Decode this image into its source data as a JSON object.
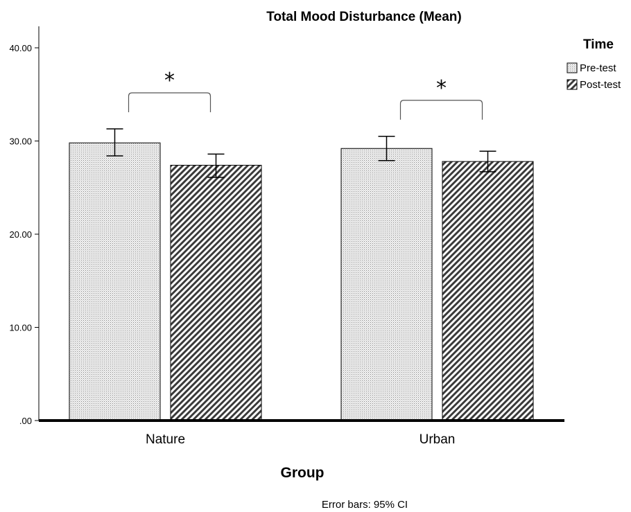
{
  "chart_data": {
    "type": "bar",
    "title": "Total Mood Disturbance (Mean)",
    "xlabel": "Group",
    "ylabel": "",
    "categories": [
      "Nature",
      "Urban"
    ],
    "ylim": [
      0,
      40
    ],
    "yticks": [
      0,
      10,
      20,
      30,
      40
    ],
    "ytick_labels": [
      ".00",
      "10.00",
      "20.00",
      "30.00",
      "40.00"
    ],
    "series": [
      {
        "name": "Pre-test",
        "pattern": "dots",
        "values": [
          29.8,
          29.2
        ],
        "ci_low": [
          28.4,
          27.9
        ],
        "ci_high": [
          31.3,
          30.5
        ]
      },
      {
        "name": "Post-test",
        "pattern": "hatch",
        "values": [
          27.4,
          27.8
        ],
        "ci_low": [
          26.1,
          26.7
        ],
        "ci_high": [
          28.6,
          28.9
        ]
      }
    ],
    "legend": {
      "title": "Time",
      "position": "top-right"
    },
    "annotations": [
      {
        "text": "*",
        "category": "Nature"
      },
      {
        "text": "*",
        "category": "Urban"
      }
    ],
    "note": "Error bars: 95% CI",
    "grid": false
  }
}
